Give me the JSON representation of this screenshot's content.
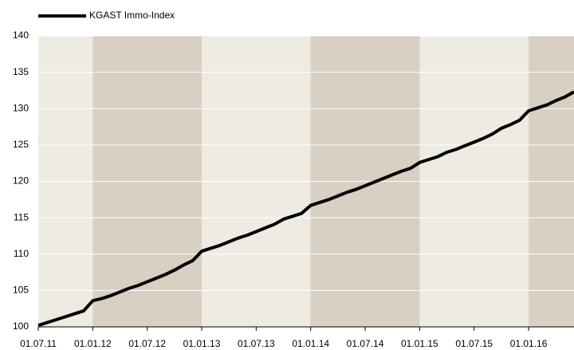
{
  "chart_data": {
    "type": "line",
    "x": [
      "2011-07",
      "2011-08",
      "2011-09",
      "2011-10",
      "2011-11",
      "2011-12",
      "2012-01",
      "2012-02",
      "2012-03",
      "2012-04",
      "2012-05",
      "2012-06",
      "2012-07",
      "2012-08",
      "2012-09",
      "2012-10",
      "2012-11",
      "2012-12",
      "2013-01",
      "2013-02",
      "2013-03",
      "2013-04",
      "2013-05",
      "2013-06",
      "2013-07",
      "2013-08",
      "2013-09",
      "2013-10",
      "2013-11",
      "2013-12",
      "2014-01",
      "2014-02",
      "2014-03",
      "2014-04",
      "2014-05",
      "2014-06",
      "2014-07",
      "2014-08",
      "2014-09",
      "2014-10",
      "2014-11",
      "2014-12",
      "2015-01",
      "2015-02",
      "2015-03",
      "2015-04",
      "2015-05",
      "2015-06",
      "2015-07",
      "2015-08",
      "2015-09",
      "2015-10",
      "2015-11",
      "2015-12",
      "2016-01",
      "2016-02",
      "2016-03",
      "2016-04",
      "2016-05",
      "2016-06"
    ],
    "series": [
      {
        "name": "KGAST Immo-Index",
        "color": "#000000",
        "values": [
          100.2,
          100.6,
          101.0,
          101.4,
          101.8,
          102.2,
          103.6,
          103.9,
          104.3,
          104.8,
          105.3,
          105.7,
          106.2,
          106.7,
          107.2,
          107.8,
          108.5,
          109.1,
          110.4,
          110.8,
          111.2,
          111.7,
          112.2,
          112.6,
          113.1,
          113.6,
          114.1,
          114.8,
          115.2,
          115.6,
          116.7,
          117.1,
          117.5,
          118.0,
          118.5,
          118.9,
          119.4,
          119.9,
          120.4,
          120.9,
          121.4,
          121.8,
          122.6,
          123.0,
          123.4,
          124.0,
          124.4,
          124.9,
          125.4,
          125.9,
          126.5,
          127.3,
          127.8,
          128.4,
          129.7,
          130.1,
          130.5,
          131.1,
          131.6,
          132.3
        ]
      }
    ],
    "xlim": [
      "2011-07",
      "2016-06"
    ],
    "xticks": [
      {
        "value": "2011-07",
        "label": "01.07.11"
      },
      {
        "value": "2012-01",
        "label": "01.01.12"
      },
      {
        "value": "2012-07",
        "label": "01.07.12"
      },
      {
        "value": "2013-01",
        "label": "01.01.13"
      },
      {
        "value": "2013-07",
        "label": "01.07.13"
      },
      {
        "value": "2014-01",
        "label": "01.01.14"
      },
      {
        "value": "2014-07",
        "label": "01.07.14"
      },
      {
        "value": "2015-01",
        "label": "01.01.15"
      },
      {
        "value": "2015-07",
        "label": "01.07.15"
      },
      {
        "value": "2016-01",
        "label": "01.01.16"
      }
    ],
    "ylim": [
      100,
      140
    ],
    "yticks": [
      100,
      105,
      110,
      115,
      120,
      125,
      130,
      135,
      140
    ],
    "grid": true
  }
}
